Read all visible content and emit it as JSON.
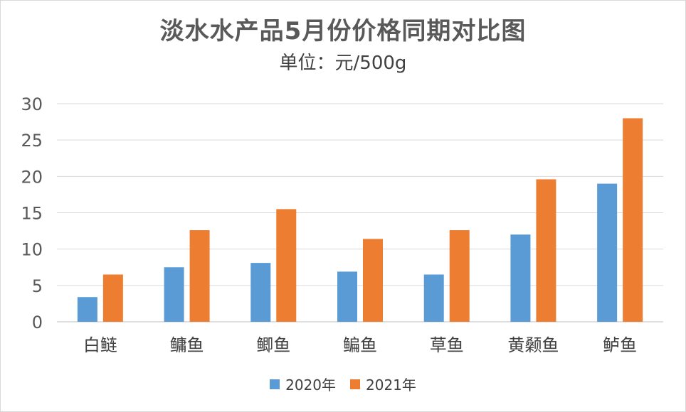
{
  "chart_data": {
    "type": "bar",
    "title": "淡水水产品5月份价格同期对比图",
    "subtitle": "单位：元/500g",
    "categories": [
      "白鲢",
      "鳙鱼",
      "鲫鱼",
      "鳊鱼",
      "草鱼",
      "黄颡鱼",
      "鲈鱼"
    ],
    "series": [
      {
        "name": "2020年",
        "color": "#5B9BD5",
        "values": [
          3.4,
          7.5,
          8.1,
          6.9,
          6.5,
          12.0,
          19.0
        ]
      },
      {
        "name": "2021年",
        "color": "#ED7D31",
        "values": [
          6.5,
          12.6,
          15.5,
          11.4,
          12.6,
          19.6,
          28.0
        ]
      }
    ],
    "ylim": [
      0,
      30
    ],
    "yticks": [
      0,
      5,
      10,
      15,
      20,
      25,
      30
    ],
    "grid": true,
    "legend_position": "bottom"
  }
}
